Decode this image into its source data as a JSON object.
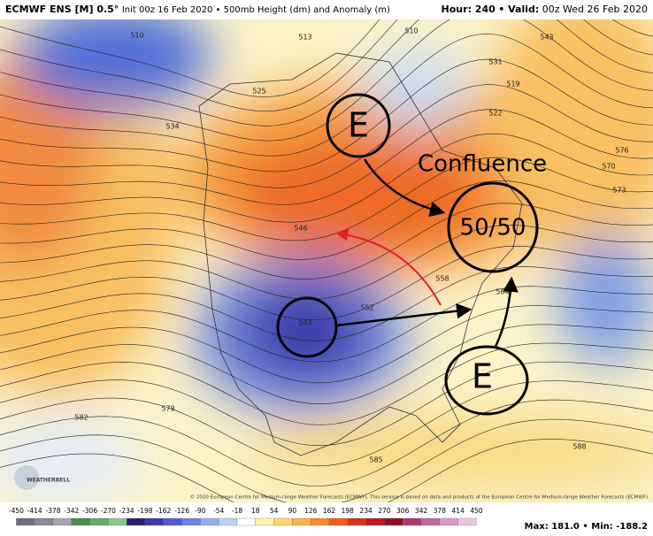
{
  "header": {
    "model": "ECMWF ENS [M] 0.5°",
    "detail": "Init 00z 16 Feb 2020 • 500mb Height (dm) and Anomaly (m)",
    "hour": "Hour: 240",
    "valid_label": "• Valid:",
    "valid_time": "00z Wed 26 Feb 2020"
  },
  "annotations": {
    "confluence": "Confluence",
    "fifty_fifty": "50/50",
    "east_north": "E",
    "east_south": "E"
  },
  "contour_labels": [
    "510",
    "513",
    "525",
    "534",
    "546",
    "543",
    "552",
    "558",
    "564",
    "570",
    "573",
    "576",
    "579",
    "582",
    "585",
    "588",
    "519",
    "522",
    "531",
    "510",
    "543"
  ],
  "logo": "WEATHERBELL",
  "copyright": "© 2020 European Centre for Medium-range Weather Forecasts (ECMWF). This service is based on data and products of the European Centre for Medium-range Weather Forecasts (ECMWF).",
  "colorbar": {
    "ticks": [
      -450,
      -414,
      -378,
      -342,
      -306,
      -270,
      -234,
      -198,
      -162,
      -126,
      -90,
      -54,
      -18,
      18,
      54,
      90,
      126,
      162,
      198,
      234,
      270,
      306,
      342,
      378,
      414,
      450
    ],
    "colors": [
      "#6e6e7e",
      "#8a8a9a",
      "#a6a6b2",
      "#4d8a55",
      "#6aa86a",
      "#8ec48a",
      "#2a1f7a",
      "#3b3aa8",
      "#4f5bd0",
      "#6a86e0",
      "#8fb0ec",
      "#bcd4f4",
      "#ffffff",
      "#fdf2b0",
      "#fbd870",
      "#f9b24a",
      "#f58a30",
      "#ec5e22",
      "#d8341c",
      "#b61c1c",
      "#8e1020",
      "#a83a6e",
      "#c06aa0",
      "#d59ac6",
      "#e6c4e0"
    ]
  },
  "stats": "Max: 181.0 • Min: -188.2"
}
